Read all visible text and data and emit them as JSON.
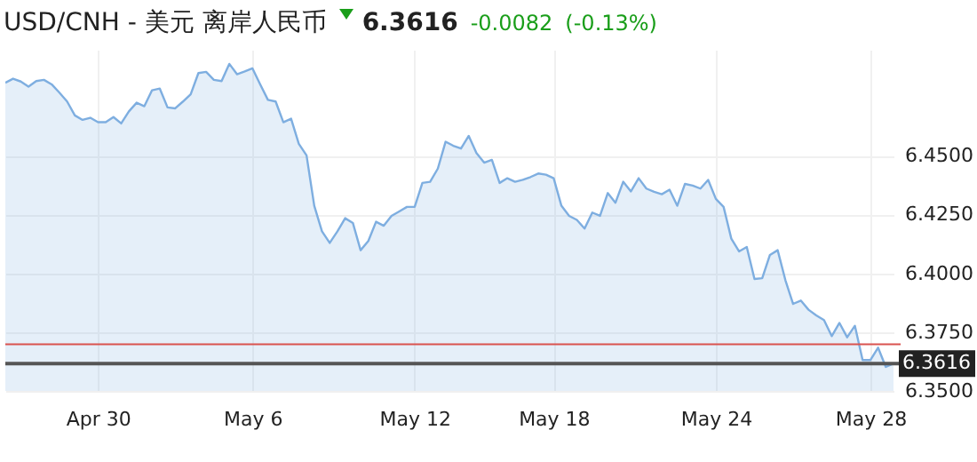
{
  "chart_data": {
    "type": "area",
    "title": "USD/CNH - 美元 离岸人民币",
    "annotations": [
      "6.3616",
      "-0.0082",
      "(-0.13%)"
    ],
    "categories": [
      null,
      null,
      null,
      null,
      null,
      null,
      null,
      null,
      null,
      null,
      null,
      null,
      "Apr 30",
      null,
      null,
      null,
      null,
      null,
      null,
      null,
      null,
      null,
      null,
      null,
      null,
      null,
      null,
      null,
      null,
      null,
      null,
      null,
      "May 6",
      null,
      null,
      null,
      null,
      null,
      null,
      null,
      null,
      null,
      null,
      null,
      null,
      null,
      null,
      null,
      null,
      null,
      null,
      null,
      null,
      "May 12",
      null,
      null,
      null,
      null,
      null,
      null,
      null,
      null,
      null,
      null,
      null,
      null,
      null,
      null,
      null,
      null,
      null,
      "May 18",
      null,
      null,
      null,
      null,
      null,
      null,
      null,
      null,
      null,
      null,
      null,
      null,
      null,
      null,
      null,
      null,
      null,
      null,
      null,
      null,
      "May 24",
      null,
      null,
      null,
      null,
      null,
      null,
      null,
      null,
      null,
      null,
      null,
      null,
      null,
      null,
      null,
      null,
      null,
      null,
      null,
      "May 28",
      null,
      null,
      null
    ],
    "series": [
      {
        "color": "#7eaee0",
        "values": [
          6.481,
          6.4827,
          6.4815,
          6.4793,
          6.4817,
          6.4822,
          6.4803,
          6.4768,
          6.473,
          6.4671,
          6.4652,
          6.4661,
          6.4642,
          6.4642,
          6.4664,
          6.4637,
          6.4688,
          6.4725,
          6.471,
          6.4778,
          6.4785,
          6.4705,
          6.4701,
          6.473,
          6.4761,
          6.4851,
          6.4856,
          6.4822,
          6.4817,
          6.489,
          6.4846,
          6.4858,
          6.4871,
          6.4803,
          6.4737,
          6.473,
          6.4642,
          6.4657,
          6.455,
          6.4501,
          6.4287,
          6.4178,
          6.4129,
          6.4178,
          6.4234,
          6.4214,
          6.4098,
          6.4137,
          6.4219,
          6.4202,
          6.4244,
          6.4263,
          6.4282,
          6.4282,
          6.4384,
          6.4389,
          6.4445,
          6.4559,
          6.4542,
          6.453,
          6.4584,
          6.4511,
          6.447,
          6.4482,
          6.4384,
          6.4404,
          6.4389,
          6.4397,
          6.4409,
          6.4424,
          6.4419,
          6.4404,
          6.4287,
          6.4244,
          6.4227,
          6.419,
          6.4258,
          6.4244,
          6.4341,
          6.43,
          6.4389,
          6.4348,
          6.4404,
          6.436,
          6.4346,
          6.4336,
          6.4355,
          6.4287,
          6.438,
          6.4373,
          6.436,
          6.4397,
          6.4316,
          6.4282,
          6.4147,
          6.4093,
          6.4112,
          6.3976,
          6.3979,
          6.4078,
          6.4098,
          6.3971,
          6.387,
          6.3884,
          6.3845,
          6.3821,
          6.3801,
          6.3733,
          6.3789,
          6.3728,
          6.3777,
          6.3631,
          6.3631,
          6.3684,
          6.3602,
          6.3616
        ]
      }
    ],
    "ylim": [
      6.35,
      6.495
    ],
    "yticks": [
      {
        "value": 6.35,
        "label": "6.3500"
      },
      {
        "value": 6.375,
        "label": "6.3750"
      },
      {
        "value": 6.4,
        "label": "6.4000"
      },
      {
        "value": 6.425,
        "label": "6.4250"
      },
      {
        "value": 6.45,
        "label": "6.4500"
      }
    ],
    "grid": true,
    "ref_lines": [
      {
        "axis": "y",
        "value": 6.3698,
        "color": "#d9534f"
      },
      {
        "axis": "y",
        "value": 6.3616,
        "label": "6.3616",
        "color": "#555555"
      }
    ]
  }
}
